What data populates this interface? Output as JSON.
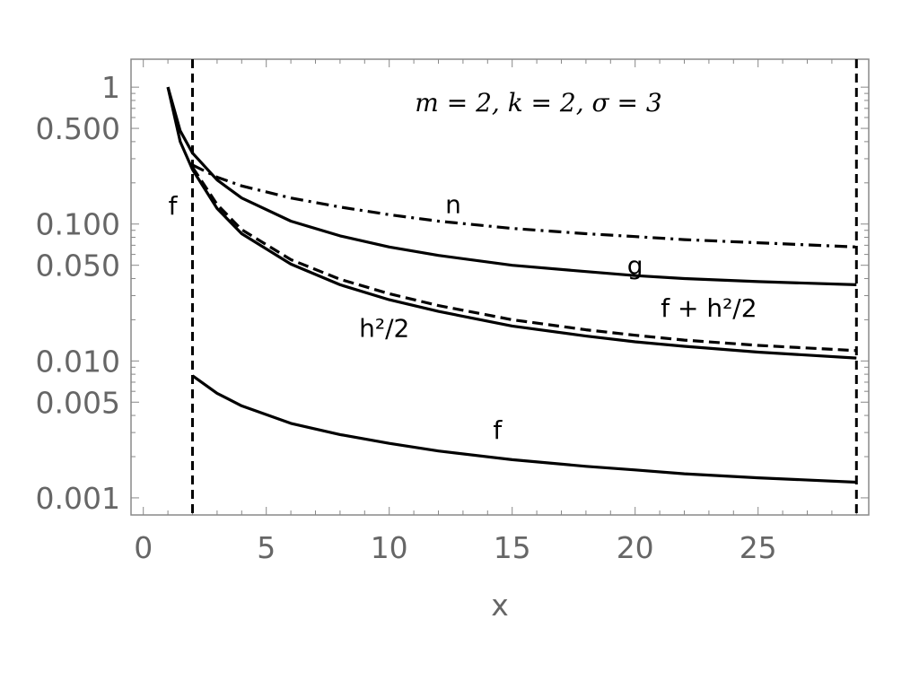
{
  "chart_data": {
    "type": "line",
    "title": "",
    "annotation": "m = 2, k = 2, σ = 3",
    "xlabel": "x",
    "ylabel": "",
    "xlim": [
      -0.5,
      29.5
    ],
    "ylim": [
      0.00075,
      1.6
    ],
    "yscale": "log",
    "grid": false,
    "xticks": [
      0,
      5,
      10,
      15,
      20,
      25
    ],
    "xtick_labels": [
      "0",
      "5",
      "10",
      "15",
      "20",
      "25"
    ],
    "yticks": [
      0.001,
      0.005,
      0.01,
      0.05,
      0.1,
      0.5,
      1
    ],
    "ytick_labels": [
      "0.001",
      "0.005",
      "0.010",
      "0.050",
      "0.100",
      "0.500",
      "1"
    ],
    "vertical_lines": [
      2,
      29
    ],
    "series": [
      {
        "label": "n",
        "style": "dashdot",
        "x": [
          2,
          3,
          4,
          6,
          8,
          10,
          12,
          15,
          18,
          20,
          22,
          25,
          29
        ],
        "values": [
          0.27,
          0.22,
          0.19,
          0.155,
          0.133,
          0.117,
          0.105,
          0.093,
          0.085,
          0.081,
          0.077,
          0.073,
          0.068
        ]
      },
      {
        "label": "g",
        "style": "solid",
        "x": [
          1,
          1.5,
          2,
          3,
          4,
          6,
          8,
          10,
          12,
          15,
          18,
          20,
          22,
          25,
          29
        ],
        "values": [
          1,
          0.48,
          0.33,
          0.21,
          0.155,
          0.105,
          0.082,
          0.068,
          0.059,
          0.05,
          0.045,
          0.042,
          0.04,
          0.038,
          0.036
        ]
      },
      {
        "label": "h²/2",
        "style": "solid",
        "x": [
          1,
          1.5,
          2,
          3,
          4,
          6,
          8,
          10,
          12,
          15,
          18,
          20,
          22,
          25,
          29
        ],
        "values": [
          1,
          0.4,
          0.25,
          0.13,
          0.085,
          0.051,
          0.036,
          0.028,
          0.023,
          0.018,
          0.0152,
          0.0138,
          0.0128,
          0.0116,
          0.0105
        ]
      },
      {
        "label": "f + h²/2",
        "style": "dashed",
        "x": [
          2,
          3,
          4,
          6,
          8,
          10,
          12,
          15,
          18,
          20,
          22,
          25,
          29
        ],
        "values": [
          0.26,
          0.139,
          0.091,
          0.055,
          0.0395,
          0.031,
          0.0254,
          0.02,
          0.0169,
          0.0154,
          0.0142,
          0.013,
          0.0119
        ]
      },
      {
        "label": "f",
        "style": "solid",
        "x": [
          2,
          3,
          4,
          6,
          8,
          10,
          12,
          15,
          18,
          20,
          22,
          25,
          29
        ],
        "values": [
          0.0078,
          0.0058,
          0.0047,
          0.0035,
          0.0029,
          0.0025,
          0.0022,
          0.0019,
          0.0017,
          0.0016,
          0.0015,
          0.0014,
          0.0013
        ]
      }
    ],
    "curve_labels": [
      {
        "text": "n",
        "x": 12.6,
        "y": 0.12
      },
      {
        "text": "g",
        "x": 20,
        "y": 0.043
      },
      {
        "text": "f + h²/2",
        "x": 23,
        "y": 0.021
      },
      {
        "text": "h²/2",
        "x": 9.8,
        "y": 0.015
      },
      {
        "text": "f",
        "x": 14.4,
        "y": 0.0027
      },
      {
        "text": "f",
        "x": 1.2,
        "y": 0.118
      }
    ]
  }
}
